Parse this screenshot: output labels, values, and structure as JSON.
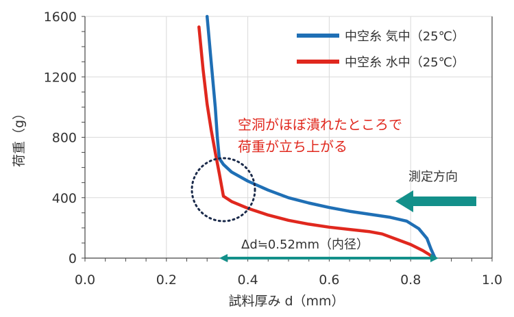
{
  "chart_data": {
    "type": "line",
    "xlabel": "試料厚み d（mm）",
    "ylabel": "荷重（g）",
    "xlim": [
      0.0,
      1.0
    ],
    "ylim": [
      0,
      1600
    ],
    "x_ticks": [
      "0.0",
      "0.2",
      "0.4",
      "0.6",
      "0.8",
      "1.0"
    ],
    "y_ticks": [
      "0",
      "400",
      "800",
      "1200",
      "1600"
    ],
    "grid": true,
    "legend_position": "top-right",
    "series": [
      {
        "name": "中空糸 気中（25℃）",
        "color": "#1f6fb5",
        "points": [
          [
            0.3,
            1600
          ],
          [
            0.31,
            1300
          ],
          [
            0.32,
            1000
          ],
          [
            0.325,
            800
          ],
          [
            0.33,
            660
          ],
          [
            0.34,
            620
          ],
          [
            0.36,
            570
          ],
          [
            0.4,
            510
          ],
          [
            0.45,
            450
          ],
          [
            0.5,
            400
          ],
          [
            0.55,
            365
          ],
          [
            0.6,
            335
          ],
          [
            0.65,
            310
          ],
          [
            0.7,
            290
          ],
          [
            0.75,
            270
          ],
          [
            0.79,
            245
          ],
          [
            0.82,
            195
          ],
          [
            0.84,
            130
          ],
          [
            0.85,
            60
          ],
          [
            0.86,
            0
          ]
        ]
      },
      {
        "name": "中空糸 水中（25℃）",
        "color": "#e0281e",
        "points": [
          [
            0.28,
            1530
          ],
          [
            0.29,
            1250
          ],
          [
            0.3,
            1020
          ],
          [
            0.31,
            850
          ],
          [
            0.32,
            700
          ],
          [
            0.33,
            560
          ],
          [
            0.34,
            410
          ],
          [
            0.36,
            375
          ],
          [
            0.4,
            330
          ],
          [
            0.45,
            285
          ],
          [
            0.5,
            250
          ],
          [
            0.55,
            225
          ],
          [
            0.6,
            205
          ],
          [
            0.65,
            190
          ],
          [
            0.7,
            175
          ],
          [
            0.73,
            160
          ],
          [
            0.77,
            120
          ],
          [
            0.8,
            90
          ],
          [
            0.83,
            50
          ],
          [
            0.86,
            0
          ]
        ]
      }
    ],
    "annotations": {
      "collapse_line1": "空洞がほぼ潰れたところで",
      "collapse_line2": "荷重が立ち上がる",
      "direction_label": "測定方向",
      "delta_label": "Δd≒0.52mm（内径）"
    },
    "colors": {
      "direction_arrow": "#13908a",
      "circle": "#1a2a4a",
      "annotation_red": "#e0281e"
    }
  }
}
